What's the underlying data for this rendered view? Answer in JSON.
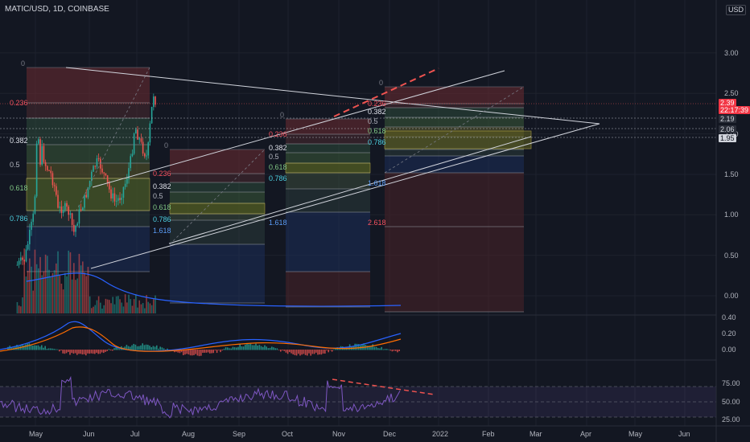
{
  "title": "MATIC/USD, 1D, COINBASE",
  "currency": "USD",
  "price_axis": {
    "main_ticks": [
      "3.00",
      "2.50",
      "2.00",
      "1.50",
      "1.00",
      "0.50",
      "0.00"
    ],
    "macd_ticks": [
      "0.40",
      "0.20",
      "0.00"
    ],
    "rsi_ticks": [
      "75.00",
      "50.00",
      "25.00"
    ],
    "current_price": "2.39",
    "countdown": "22:17:39",
    "tags": [
      "2.19",
      "2.06",
      "1.95"
    ]
  },
  "time_axis": [
    "May",
    "Jun",
    "Jul",
    "Aug",
    "Sep",
    "Oct",
    "Nov",
    "Dec",
    "2022",
    "Feb",
    "Mar",
    "Apr",
    "May",
    "Jun"
  ],
  "fib_labels": {
    "box1": [
      "0",
      "0.236",
      "0.382",
      "0.5",
      "0.618",
      "0.786"
    ],
    "box2": [
      "0",
      "0.236",
      "0.382",
      "0.5",
      "0.618",
      "0.786",
      "1.618"
    ],
    "box3": [
      "0",
      "0.236",
      "0.382",
      "0.5",
      "0.618",
      "0.786",
      "1.618"
    ],
    "box4": [
      "0",
      "0.236",
      "0.382",
      "0.5",
      "0.618",
      "0.786",
      "1.618",
      "2.618"
    ]
  },
  "colors": {
    "background": "#131722",
    "grid": "#1e222d",
    "up": "#26a69a",
    "down": "#ef5350",
    "price_tag": "#f23645",
    "macd": "#2962ff",
    "signal": "#ff6d00",
    "rsi": "#7e57c2",
    "trendline": "#d1d4dc"
  },
  "chart_data": {
    "type": "candlestick",
    "symbol": "MATIC/USD",
    "interval": "1D",
    "exchange": "COINBASE",
    "x_range": [
      "2021-04-10",
      "2022-06-25"
    ],
    "y_range": [
      -0.25,
      3.3
    ],
    "close_path": [
      {
        "date": "2021-04-12",
        "close": 0.38
      },
      {
        "date": "2021-04-25",
        "close": 0.45
      },
      {
        "date": "2021-05-05",
        "close": 0.8
      },
      {
        "date": "2021-05-12",
        "close": 1.05
      },
      {
        "date": "2021-05-18",
        "close": 2.4
      },
      {
        "date": "2021-05-20",
        "close": 1.55
      },
      {
        "date": "2021-05-25",
        "close": 1.8
      },
      {
        "date": "2021-06-01",
        "close": 1.6
      },
      {
        "date": "2021-06-10",
        "close": 1.5
      },
      {
        "date": "2021-06-18",
        "close": 1.3
      },
      {
        "date": "2021-06-22",
        "close": 1.05
      },
      {
        "date": "2021-06-30",
        "close": 1.1
      },
      {
        "date": "2021-07-10",
        "close": 1.05
      },
      {
        "date": "2021-07-20",
        "close": 0.78
      },
      {
        "date": "2021-07-28",
        "close": 1.0
      },
      {
        "date": "2021-08-08",
        "close": 1.2
      },
      {
        "date": "2021-08-20",
        "close": 1.5
      },
      {
        "date": "2021-08-28",
        "close": 1.65
      },
      {
        "date": "2021-09-05",
        "close": 1.6
      },
      {
        "date": "2021-09-20",
        "close": 1.3
      },
      {
        "date": "2021-09-30",
        "close": 1.15
      },
      {
        "date": "2021-10-08",
        "close": 1.22
      },
      {
        "date": "2021-10-18",
        "close": 1.4
      },
      {
        "date": "2021-10-28",
        "close": 1.7
      },
      {
        "date": "2021-11-03",
        "close": 2.1
      },
      {
        "date": "2021-11-15",
        "close": 1.85
      },
      {
        "date": "2021-11-25",
        "close": 1.7
      },
      {
        "date": "2021-12-01",
        "close": 2.2
      },
      {
        "date": "2021-12-06",
        "close": 2.5
      },
      {
        "date": "2021-12-10",
        "close": 2.39
      }
    ],
    "last_price": 2.39
  }
}
